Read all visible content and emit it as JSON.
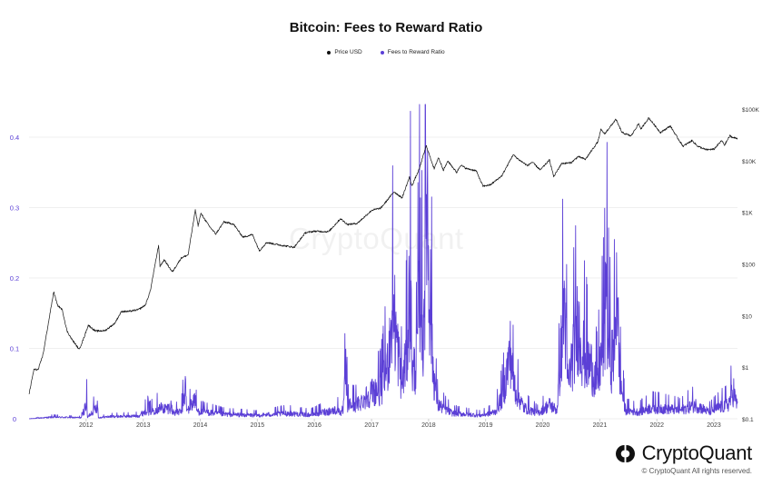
{
  "chart_data": {
    "type": "line",
    "title": "Bitcoin: Fees to Reward Ratio",
    "legend_position": "top-center",
    "grid": true,
    "x_axis": {
      "type": "time",
      "range": [
        "2011-01-01",
        "2023-06-01"
      ],
      "tick_labels": [
        "2012",
        "2013",
        "2014",
        "2015",
        "2016",
        "2017",
        "2018",
        "2019",
        "2020",
        "2021",
        "2022",
        "2023"
      ]
    },
    "y_left": {
      "range": [
        0,
        0.44
      ],
      "tick_values": [
        0,
        0.1,
        0.2,
        0.3,
        0.4
      ],
      "tick_labels": [
        "0",
        "0.1",
        "0.2",
        "0.3",
        "0.4"
      ]
    },
    "y_right": {
      "scale": "log",
      "range": [
        0.1,
        100000
      ],
      "tick_values": [
        0.1,
        1,
        10,
        100,
        1000,
        10000,
        100000
      ],
      "tick_labels": [
        "$0.1",
        "$1",
        "$10",
        "$100",
        "$1K",
        "$10K",
        "$100K"
      ]
    },
    "series": [
      {
        "name": "Price USD",
        "axis": "right",
        "color": "#111111",
        "points": [
          [
            "2011-01-01",
            0.3
          ],
          [
            "2011-02-01",
            0.9
          ],
          [
            "2011-03-01",
            0.9
          ],
          [
            "2011-04-01",
            1.8
          ],
          [
            "2011-06-08",
            29
          ],
          [
            "2011-07-01",
            16
          ],
          [
            "2011-08-01",
            13
          ],
          [
            "2011-09-01",
            5
          ],
          [
            "2011-10-01",
            3.5
          ],
          [
            "2011-11-18",
            2.2
          ],
          [
            "2011-12-15",
            3.5
          ],
          [
            "2012-01-15",
            6.5
          ],
          [
            "2012-03-01",
            5
          ],
          [
            "2012-05-01",
            5.1
          ],
          [
            "2012-07-01",
            7
          ],
          [
            "2012-08-15",
            12
          ],
          [
            "2012-10-01",
            12
          ],
          [
            "2012-12-01",
            13
          ],
          [
            "2013-01-15",
            16
          ],
          [
            "2013-02-15",
            30
          ],
          [
            "2013-04-09",
            230
          ],
          [
            "2013-04-18",
            90
          ],
          [
            "2013-05-15",
            120
          ],
          [
            "2013-07-06",
            70
          ],
          [
            "2013-09-01",
            130
          ],
          [
            "2013-10-15",
            150
          ],
          [
            "2013-11-30",
            1100
          ],
          [
            "2013-12-18",
            550
          ],
          [
            "2014-01-05",
            950
          ],
          [
            "2014-02-25",
            550
          ],
          [
            "2014-04-10",
            380
          ],
          [
            "2014-06-01",
            650
          ],
          [
            "2014-08-01",
            590
          ],
          [
            "2014-10-01",
            330
          ],
          [
            "2014-12-01",
            370
          ],
          [
            "2015-01-14",
            180
          ],
          [
            "2015-03-01",
            260
          ],
          [
            "2015-06-01",
            230
          ],
          [
            "2015-08-25",
            210
          ],
          [
            "2015-11-04",
            400
          ],
          [
            "2016-01-01",
            430
          ],
          [
            "2016-04-01",
            420
          ],
          [
            "2016-06-16",
            750
          ],
          [
            "2016-08-01",
            580
          ],
          [
            "2016-10-01",
            610
          ],
          [
            "2017-01-04",
            1100
          ],
          [
            "2017-03-01",
            1200
          ],
          [
            "2017-05-25",
            2500
          ],
          [
            "2017-07-15",
            1900
          ],
          [
            "2017-09-01",
            4800
          ],
          [
            "2017-09-15",
            3200
          ],
          [
            "2017-11-01",
            6700
          ],
          [
            "2017-12-17",
            19500
          ],
          [
            "2018-02-06",
            6900
          ],
          [
            "2018-03-05",
            11500
          ],
          [
            "2018-04-06",
            6600
          ],
          [
            "2018-05-05",
            9800
          ],
          [
            "2018-06-30",
            5900
          ],
          [
            "2018-07-25",
            8200
          ],
          [
            "2018-09-01",
            7000
          ],
          [
            "2018-11-01",
            6400
          ],
          [
            "2018-12-15",
            3200
          ],
          [
            "2019-02-01",
            3400
          ],
          [
            "2019-04-15",
            5100
          ],
          [
            "2019-06-26",
            13000
          ],
          [
            "2019-08-01",
            10500
          ],
          [
            "2019-09-26",
            8000
          ],
          [
            "2019-10-26",
            9400
          ],
          [
            "2019-12-17",
            6600
          ],
          [
            "2020-02-14",
            10300
          ],
          [
            "2020-03-12",
            4900
          ],
          [
            "2020-05-01",
            8800
          ],
          [
            "2020-07-01",
            9100
          ],
          [
            "2020-08-15",
            12000
          ],
          [
            "2020-10-01",
            10600
          ],
          [
            "2020-12-20",
            23500
          ],
          [
            "2021-01-08",
            40000
          ],
          [
            "2021-02-01",
            33000
          ],
          [
            "2021-04-14",
            63000
          ],
          [
            "2021-05-23",
            35000
          ],
          [
            "2021-07-20",
            30000
          ],
          [
            "2021-09-06",
            52000
          ],
          [
            "2021-09-22",
            41000
          ],
          [
            "2021-11-10",
            67500
          ],
          [
            "2022-01-24",
            35000
          ],
          [
            "2022-03-28",
            47000
          ],
          [
            "2022-05-12",
            28000
          ],
          [
            "2022-06-18",
            19000
          ],
          [
            "2022-08-14",
            24500
          ],
          [
            "2022-09-20",
            19000
          ],
          [
            "2022-11-10",
            16300
          ],
          [
            "2023-01-01",
            16600
          ],
          [
            "2023-02-20",
            24500
          ],
          [
            "2023-03-10",
            20000
          ],
          [
            "2023-04-14",
            30500
          ],
          [
            "2023-05-01",
            28000
          ],
          [
            "2023-06-01",
            27000
          ]
        ]
      },
      {
        "name": "Fees to Reward Ratio",
        "axis": "left",
        "color": "#5b3fd6",
        "points": [
          [
            "2011-01-01",
            0.0
          ],
          [
            "2011-06-01",
            0.003
          ],
          [
            "2011-12-01",
            0.002
          ],
          [
            "2012-01-05",
            0.028
          ],
          [
            "2012-01-10",
            0.002
          ],
          [
            "2012-03-15",
            0.025
          ],
          [
            "2012-03-20",
            0.002
          ],
          [
            "2012-06-01",
            0.004
          ],
          [
            "2012-12-01",
            0.005
          ],
          [
            "2013-01-20",
            0.015
          ],
          [
            "2013-02-01",
            0.03
          ],
          [
            "2013-02-05",
            0.012
          ],
          [
            "2013-04-10",
            0.02
          ],
          [
            "2013-06-01",
            0.018
          ],
          [
            "2013-07-01",
            0.023
          ],
          [
            "2013-07-05",
            0.012
          ],
          [
            "2013-09-01",
            0.012
          ],
          [
            "2013-10-01",
            0.06
          ],
          [
            "2013-10-05",
            0.012
          ],
          [
            "2013-11-28",
            0.036
          ],
          [
            "2013-12-10",
            0.014
          ],
          [
            "2014-06-01",
            0.008
          ],
          [
            "2015-01-01",
            0.006
          ],
          [
            "2015-07-10",
            0.01
          ],
          [
            "2015-12-01",
            0.007
          ],
          [
            "2016-03-01",
            0.012
          ],
          [
            "2016-06-01",
            0.016
          ],
          [
            "2016-07-01",
            0.008
          ],
          [
            "2016-07-20",
            0.085
          ],
          [
            "2016-08-01",
            0.025
          ],
          [
            "2016-10-01",
            0.025
          ],
          [
            "2016-12-01",
            0.04
          ],
          [
            "2017-01-15",
            0.05
          ],
          [
            "2017-03-01",
            0.05
          ],
          [
            "2017-04-15",
            0.1
          ],
          [
            "2017-05-20",
            0.2
          ],
          [
            "2017-06-10",
            0.14
          ],
          [
            "2017-07-15",
            0.06
          ],
          [
            "2017-08-15",
            0.12
          ],
          [
            "2017-09-05",
            0.25
          ],
          [
            "2017-09-20",
            0.08
          ],
          [
            "2017-10-15",
            0.1
          ],
          [
            "2017-11-10",
            0.28
          ],
          [
            "2017-11-25",
            0.12
          ],
          [
            "2017-12-10",
            0.3
          ],
          [
            "2017-12-22",
            0.438
          ],
          [
            "2018-01-02",
            0.26
          ],
          [
            "2018-01-15",
            0.2
          ],
          [
            "2018-02-01",
            0.08
          ],
          [
            "2018-03-01",
            0.025
          ],
          [
            "2018-06-01",
            0.01
          ],
          [
            "2018-09-01",
            0.008
          ],
          [
            "2018-12-01",
            0.006
          ],
          [
            "2019-03-01",
            0.012
          ],
          [
            "2019-04-20",
            0.04
          ],
          [
            "2019-05-15",
            0.08
          ],
          [
            "2019-06-10",
            0.12
          ],
          [
            "2019-06-26",
            0.07
          ],
          [
            "2019-07-15",
            0.05
          ],
          [
            "2019-09-01",
            0.02
          ],
          [
            "2019-12-01",
            0.01
          ],
          [
            "2020-02-15",
            0.025
          ],
          [
            "2020-04-01",
            0.015
          ],
          [
            "2020-05-20",
            0.21
          ],
          [
            "2020-06-10",
            0.06
          ],
          [
            "2020-08-15",
            0.17
          ],
          [
            "2020-09-05",
            0.13
          ],
          [
            "2020-10-10",
            0.1
          ],
          [
            "2020-11-15",
            0.09
          ],
          [
            "2020-12-15",
            0.06
          ],
          [
            "2021-01-10",
            0.11
          ],
          [
            "2021-02-01",
            0.15
          ],
          [
            "2021-02-10",
            0.29
          ],
          [
            "2021-02-20",
            0.15
          ],
          [
            "2021-03-15",
            0.1
          ],
          [
            "2021-04-10",
            0.14
          ],
          [
            "2021-04-20",
            0.29
          ],
          [
            "2021-05-01",
            0.12
          ],
          [
            "2021-05-15",
            0.06
          ],
          [
            "2021-06-15",
            0.015
          ],
          [
            "2021-09-01",
            0.012
          ],
          [
            "2021-12-01",
            0.02
          ],
          [
            "2022-03-01",
            0.018
          ],
          [
            "2022-06-01",
            0.015
          ],
          [
            "2022-09-01",
            0.025
          ],
          [
            "2022-12-01",
            0.012
          ],
          [
            "2023-02-01",
            0.02
          ],
          [
            "2023-04-01",
            0.025
          ],
          [
            "2023-05-08",
            0.05
          ],
          [
            "2023-05-20",
            0.03
          ],
          [
            "2023-06-01",
            0.025
          ]
        ]
      }
    ]
  },
  "brand": {
    "name": "CryptoQuant",
    "watermark": "CryptoQuant",
    "copyright": "© CryptoQuant All rights reserved."
  }
}
